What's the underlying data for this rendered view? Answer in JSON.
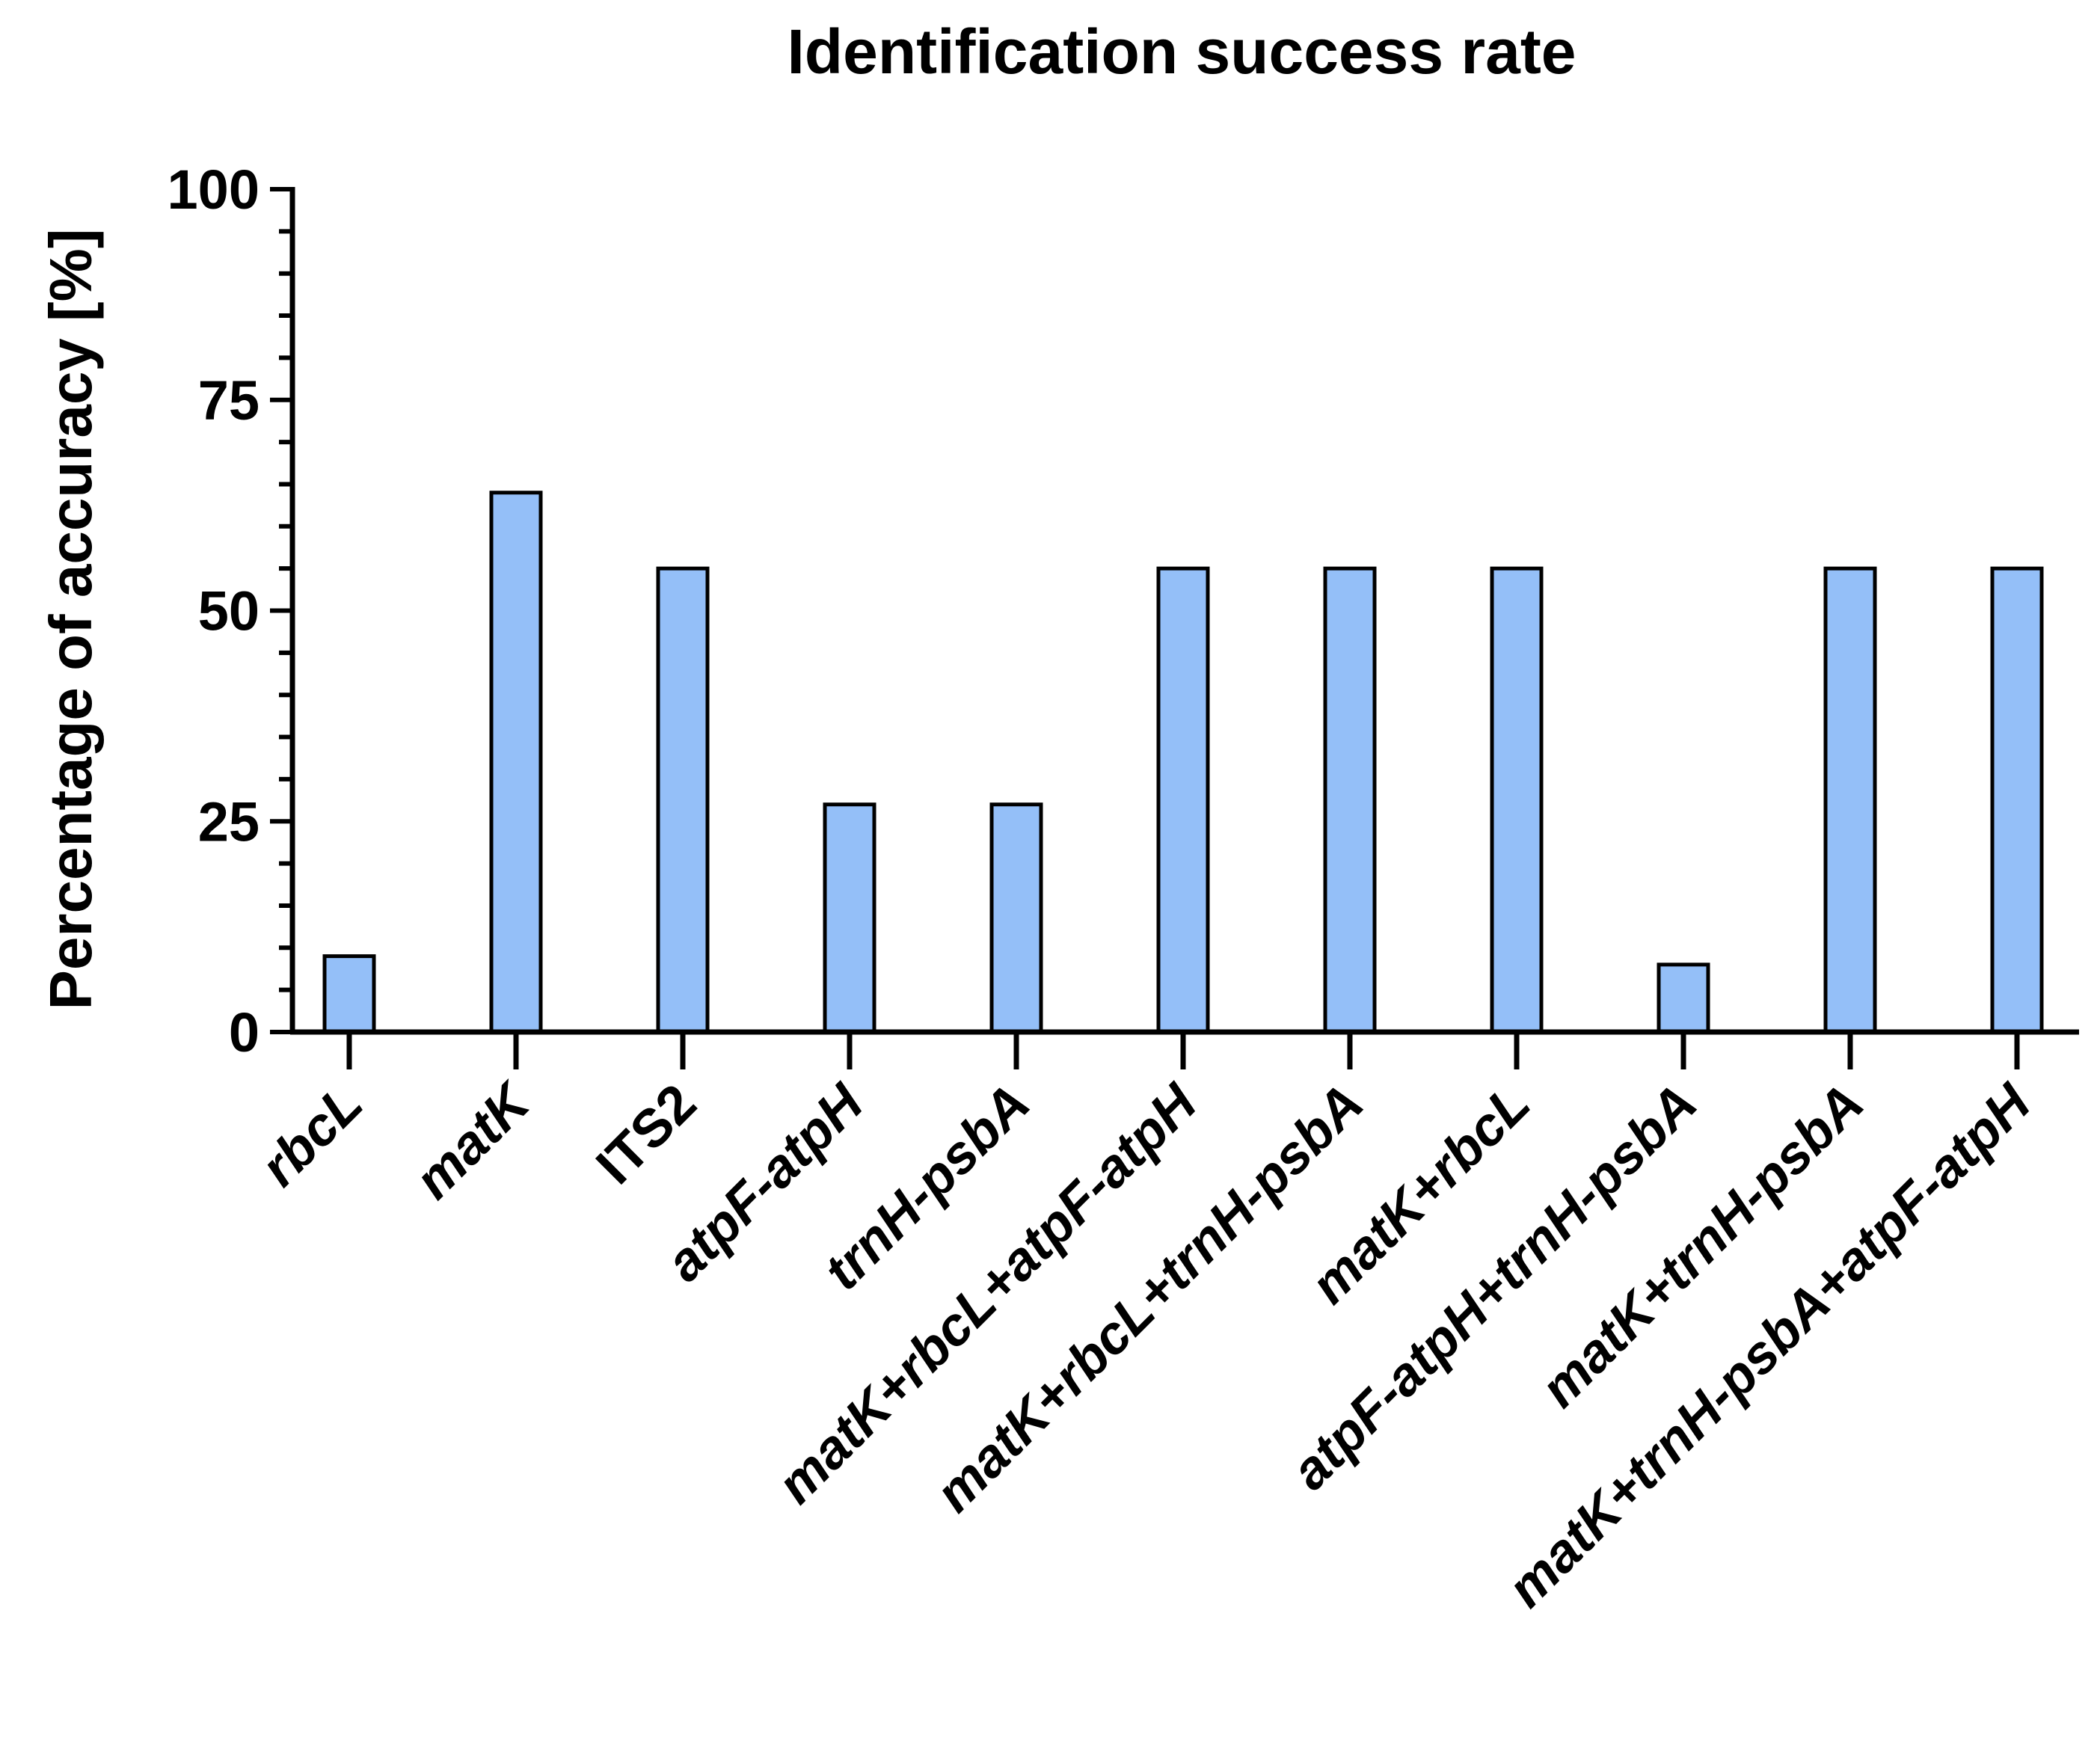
{
  "chart_data": {
    "type": "bar",
    "title": "Identification success rate",
    "xlabel": "",
    "ylabel": "Percentage of accuracy [%]",
    "ylim": [
      0,
      100
    ],
    "yticks": [
      "0",
      "25",
      "50",
      "75",
      "100"
    ],
    "minor_tick_step": 5,
    "categories": [
      "rbcL",
      "matK",
      "ITS2",
      "atpF-atpH",
      "trnH-psbA",
      "matK+rbcL+atpF-atpH",
      "matK+rbcL+trnH-psbA",
      "matK+rbcL",
      "atpF-atpH+trnH-psbA",
      "matK+trnH-psbA",
      "matK+trnH-psbA+atpF-atpH"
    ],
    "category_italic": [
      true,
      true,
      false,
      true,
      true,
      true,
      true,
      true,
      true,
      true,
      true
    ],
    "values": [
      9,
      64,
      55,
      27,
      27,
      55,
      55,
      55,
      8,
      55,
      55
    ],
    "grid": false,
    "legend": "none",
    "colors": {
      "bar_fill": "#94bff8",
      "bar_stroke": "#000000",
      "axis": "#000000"
    }
  }
}
